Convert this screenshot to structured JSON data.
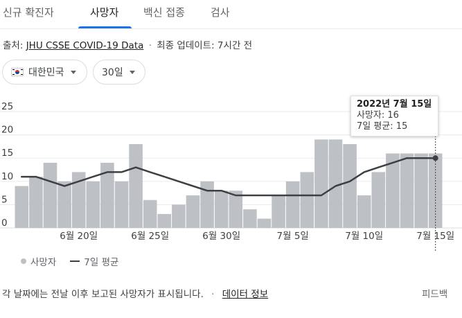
{
  "tabs": [
    {
      "label": "신규 확진자",
      "active": false
    },
    {
      "label": "사망자",
      "active": true
    },
    {
      "label": "백신 접종",
      "active": false
    },
    {
      "label": "검사",
      "active": false
    }
  ],
  "source": {
    "prefix": "출처:",
    "link": "JHU CSSE COVID-19 Data",
    "separator": "·",
    "updated": "최종 업데이트: 7시간 전"
  },
  "filters": {
    "country": "대한민국",
    "range": "30일"
  },
  "tooltip": {
    "date": "2022년 7월 15일",
    "deaths": "사망자: 16",
    "avg": "7일 평균: 15"
  },
  "legend": {
    "bars": "사망자",
    "line": "7일 평균"
  },
  "footer": {
    "note": "각 날짜에는 전날 이후 보고된 사망자가 표시됩니다.",
    "separator": "·",
    "link": "데이터 정보",
    "feedback": "피드백"
  },
  "colors": {
    "bar": "#bdc1c6",
    "line": "#3c4043",
    "grid": "#e8eaed",
    "accent": "#1a73e8"
  },
  "chart_data": {
    "type": "bar",
    "x": [
      "6월 16일",
      "6월 17일",
      "6월 18일",
      "6월 19일",
      "6월 20일",
      "6월 21일",
      "6월 22일",
      "6월 23일",
      "6월 24일",
      "6월 25일",
      "6월 26일",
      "6월 27일",
      "6월 28일",
      "6월 29일",
      "6월 30일",
      "7월 1일",
      "7월 2일",
      "7월 3일",
      "7월 4일",
      "7월 5일",
      "7월 6일",
      "7월 7일",
      "7월 8일",
      "7월 9일",
      "7월 10일",
      "7월 11일",
      "7월 12일",
      "7월 13일",
      "7월 14일",
      "7월 15일"
    ],
    "series": [
      {
        "name": "사망자",
        "type": "bar",
        "values": [
          9,
          11,
          14,
          10,
          12,
          10,
          14,
          10,
          18,
          6,
          3,
          5,
          7,
          10,
          8,
          8,
          4,
          2,
          7,
          10,
          12,
          19,
          19,
          18,
          7,
          12,
          16,
          16,
          16,
          16
        ]
      },
      {
        "name": "7일 평균",
        "type": "line",
        "values": [
          11,
          11,
          10,
          9,
          10,
          11,
          12,
          12,
          13,
          12,
          11,
          10,
          9,
          8,
          8,
          7,
          7,
          7,
          7,
          7,
          7,
          7,
          9,
          10,
          12,
          13,
          14,
          15,
          15,
          15
        ]
      }
    ],
    "xticks": [
      "6월 20일",
      "6월 25일",
      "6월 30일",
      "7월 5일",
      "7월 10일",
      "7월 15일"
    ],
    "yticks": [
      "0",
      "5",
      "10",
      "15",
      "20",
      "25"
    ],
    "ylim": [
      0,
      25
    ],
    "grid": true,
    "highlight": "7월 15일"
  }
}
